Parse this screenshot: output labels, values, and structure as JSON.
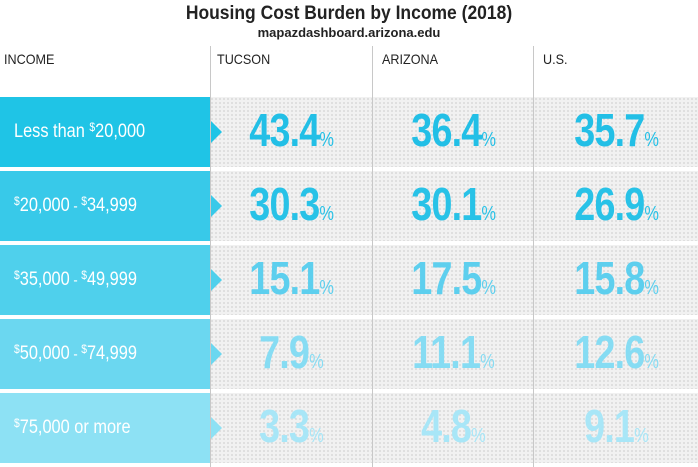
{
  "header": {
    "title": "Housing Cost Burden by Income (2018)",
    "subtitle": "mapazdashboard.arizona.edu"
  },
  "columns": {
    "income": "INCOME",
    "tucson": "TUCSON",
    "arizona": "ARIZONA",
    "us": "U.S."
  },
  "colors": {
    "row_colors": [
      "#1fc4e6",
      "#38c9e9",
      "#4fd0ec",
      "#6bd7f0",
      "#8de1f4"
    ],
    "value_colors": [
      "#22bfe6",
      "#28c2e7",
      "#5dcfee",
      "#86dcf3",
      "#a8e6f7"
    ]
  },
  "chart_data": {
    "type": "table",
    "title": "Housing Cost Burden by Income (2018)",
    "subtitle": "mapazdashboard.arizona.edu",
    "unit": "%",
    "series_names": [
      "TUCSON",
      "ARIZONA",
      "U.S."
    ],
    "rows": [
      {
        "label_parts": [
          "",
          "Less than ",
          "$",
          "20,000"
        ],
        "values": [
          43.4,
          36.4,
          35.7
        ]
      },
      {
        "label_parts": [
          "$",
          "20,000",
          " - ",
          "$",
          "34,999"
        ],
        "values": [
          30.3,
          30.1,
          26.9
        ]
      },
      {
        "label_parts": [
          "$",
          "35,000",
          " - ",
          "$",
          "49,999"
        ],
        "values": [
          15.1,
          17.5,
          15.8
        ]
      },
      {
        "label_parts": [
          "$",
          "50,000",
          " - ",
          "$",
          "74,999"
        ],
        "values": [
          7.9,
          11.1,
          12.6
        ]
      },
      {
        "label_parts": [
          "$",
          "75,000 or more"
        ],
        "values": [
          3.3,
          4.8,
          9.1
        ]
      }
    ]
  }
}
